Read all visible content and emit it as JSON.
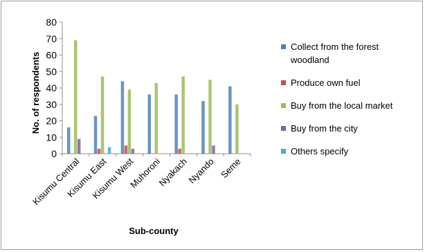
{
  "chart_data": {
    "type": "bar",
    "title": "",
    "xlabel": "Sub-county",
    "ylabel": "No. of respondents",
    "ylim": [
      0,
      80
    ],
    "yticks": [
      "0",
      "10",
      "20",
      "30",
      "40",
      "50",
      "60",
      "70",
      "80"
    ],
    "categories": [
      "Kisumu Central",
      "Kisumu East",
      "Kisumu West",
      "Muhoroni",
      "Nyakach",
      "Nyando",
      "Seme"
    ],
    "series": [
      {
        "name": "Collect from the forest woodland",
        "color": "#4f81bd",
        "values": [
          16,
          23,
          44,
          36,
          36,
          32,
          41
        ]
      },
      {
        "name": "Produce own fuel",
        "color": "#c0504d",
        "values": [
          0,
          3,
          5,
          0,
          3,
          0,
          0
        ]
      },
      {
        "name": "Buy from the local market",
        "color": "#9bbb59",
        "values": [
          69,
          47,
          39,
          43,
          47,
          45,
          30
        ]
      },
      {
        "name": "Buy from the city",
        "color": "#8064a2",
        "values": [
          9,
          0,
          3,
          0,
          0,
          5,
          0
        ]
      },
      {
        "name": "Others specify",
        "color": "#4bacc6",
        "values": [
          0,
          4,
          0,
          0,
          0,
          0,
          0
        ]
      }
    ],
    "legend_position": "right",
    "grid": false
  }
}
